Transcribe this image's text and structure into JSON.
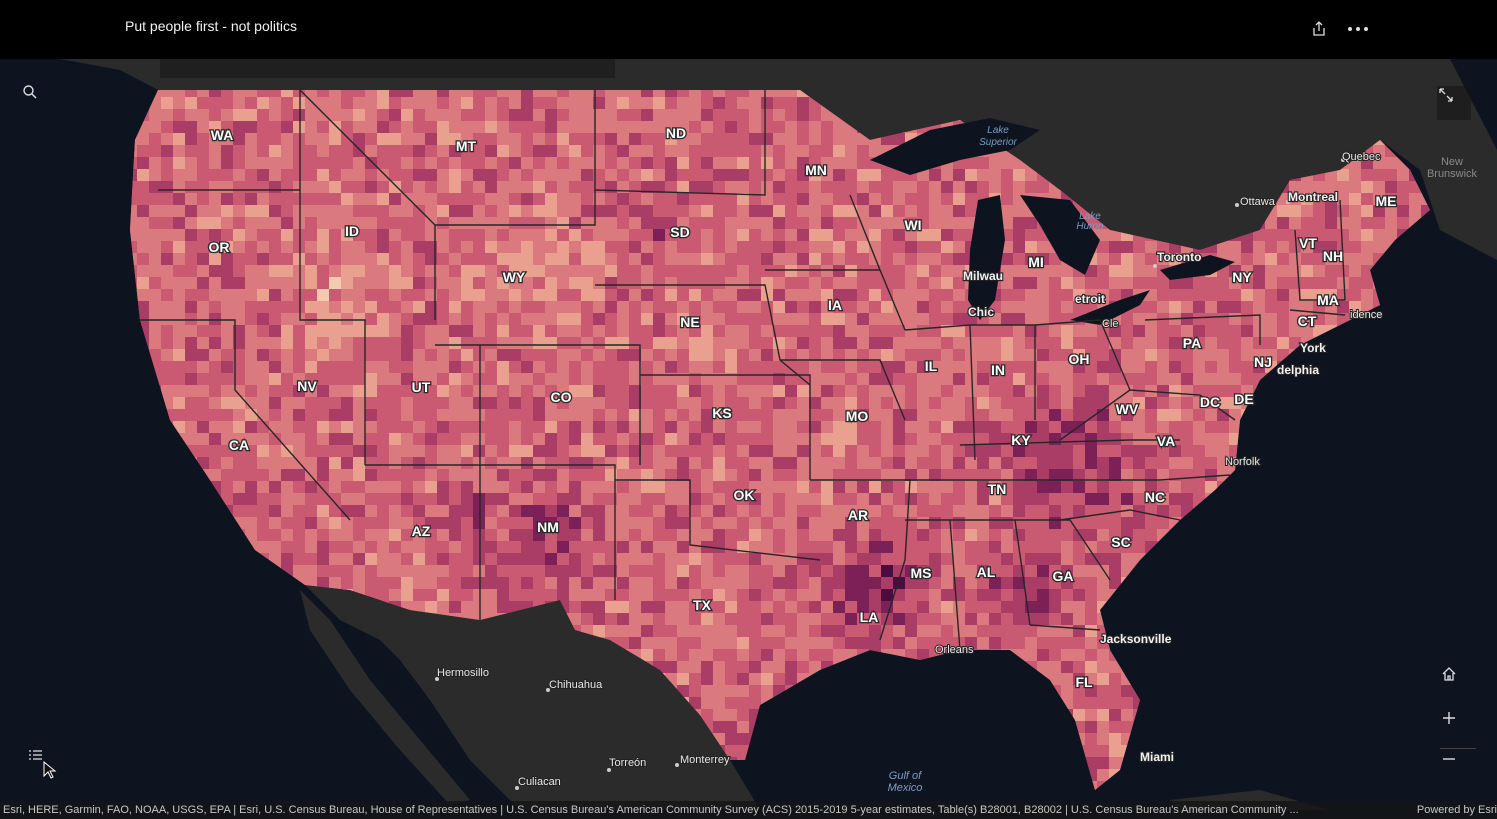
{
  "header": {
    "title": "Put people first - not politics"
  },
  "icons": {
    "share": "share-icon",
    "more": "more-icon",
    "search": "search-icon",
    "fullscreen": "fullscreen-icon",
    "home": "home-icon",
    "zoom_in": "zoom-in-icon",
    "zoom_out": "zoom-out-icon",
    "legend": "legend-icon"
  },
  "colors": {
    "ramp": [
      "#f4c9b0",
      "#e9a08e",
      "#db7a7e",
      "#c95a72",
      "#a93d66",
      "#7c2157",
      "#4d0c41"
    ],
    "land": "#2b2b2b",
    "water": "#0d1420",
    "border": "#262626"
  },
  "states": [
    {
      "abbr": "WA"
    },
    {
      "abbr": "OR"
    },
    {
      "abbr": "CA"
    },
    {
      "abbr": "NV"
    },
    {
      "abbr": "ID"
    },
    {
      "abbr": "MT"
    },
    {
      "abbr": "WY"
    },
    {
      "abbr": "UT"
    },
    {
      "abbr": "AZ"
    },
    {
      "abbr": "CO"
    },
    {
      "abbr": "NM"
    },
    {
      "abbr": "ND"
    },
    {
      "abbr": "SD"
    },
    {
      "abbr": "NE"
    },
    {
      "abbr": "KS"
    },
    {
      "abbr": "OK"
    },
    {
      "abbr": "TX"
    },
    {
      "abbr": "MN"
    },
    {
      "abbr": "IA"
    },
    {
      "abbr": "MO"
    },
    {
      "abbr": "AR"
    },
    {
      "abbr": "LA"
    },
    {
      "abbr": "WI"
    },
    {
      "abbr": "IL"
    },
    {
      "abbr": "MI"
    },
    {
      "abbr": "IN"
    },
    {
      "abbr": "OH"
    },
    {
      "abbr": "KY"
    },
    {
      "abbr": "TN"
    },
    {
      "abbr": "MS"
    },
    {
      "abbr": "AL"
    },
    {
      "abbr": "GA"
    },
    {
      "abbr": "FL"
    },
    {
      "abbr": "SC"
    },
    {
      "abbr": "NC"
    },
    {
      "abbr": "VA"
    },
    {
      "abbr": "WV"
    },
    {
      "abbr": "PA"
    },
    {
      "abbr": "NY"
    },
    {
      "abbr": "VT"
    },
    {
      "abbr": "NH"
    },
    {
      "abbr": "ME"
    },
    {
      "abbr": "MA"
    },
    {
      "abbr": "CT"
    },
    {
      "abbr": "NJ"
    },
    {
      "abbr": "DE"
    },
    {
      "abbr": "DC"
    }
  ],
  "cities": [
    "Quebec",
    "Ottawa",
    "Montreal",
    "Toronto",
    "Milwau",
    "Chic",
    "etroit",
    "delphia",
    "Norfolk",
    "Jacksonville",
    "Miami",
    "Orleans",
    "Hermosillo",
    "Chihuahua",
    "Torreón",
    "Monterrey",
    "Culiacan",
    "idence",
    "York",
    "Cle"
  ],
  "water": [
    "Lake Superior",
    "Lake Huron",
    "Gulf of Mexico"
  ],
  "regions": [
    "New Brunswick"
  ],
  "attribution": {
    "text": "Esri, HERE, Garmin, FAO, NOAA, USGS, EPA | Esri, U.S. Census Bureau, House of Representatives | U.S. Census Bureau's American Community Survey (ACS) 2015-2019 5-year estimates, Table(s) B28001, B28002 | U.S. Census Bureau's American Community ...",
    "powered": "Powered by Esri"
  }
}
